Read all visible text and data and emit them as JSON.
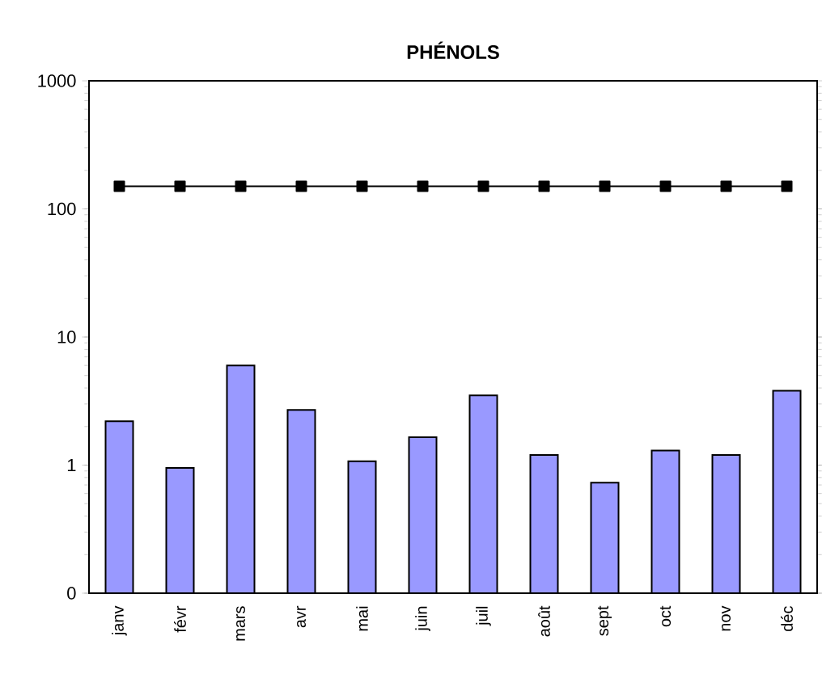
{
  "chart_data": {
    "type": "bar",
    "title": "PHÉNOLS",
    "categories": [
      "janv",
      "févr",
      "mars",
      "avr",
      "mai",
      "juin",
      "juil",
      "août",
      "sept",
      "oct",
      "nov",
      "déc"
    ],
    "series": [
      {
        "color": "#9999ff",
        "values": [
          2.2,
          0.95,
          6.0,
          2.7,
          1.07,
          1.65,
          3.5,
          1.2,
          0.73,
          1.3,
          1.2,
          3.8
        ]
      },
      {
        "type": "line",
        "color": "#000000",
        "marker": "square",
        "values": [
          150,
          150,
          150,
          150,
          150,
          150,
          150,
          150,
          150,
          150,
          150,
          150
        ]
      }
    ],
    "log": "y",
    "ylim": [
      0.1,
      1000
    ],
    "yticks": [
      {
        "value": 0.1,
        "label": "0"
      },
      1,
      10,
      100,
      1000
    ],
    "grid": false
  }
}
